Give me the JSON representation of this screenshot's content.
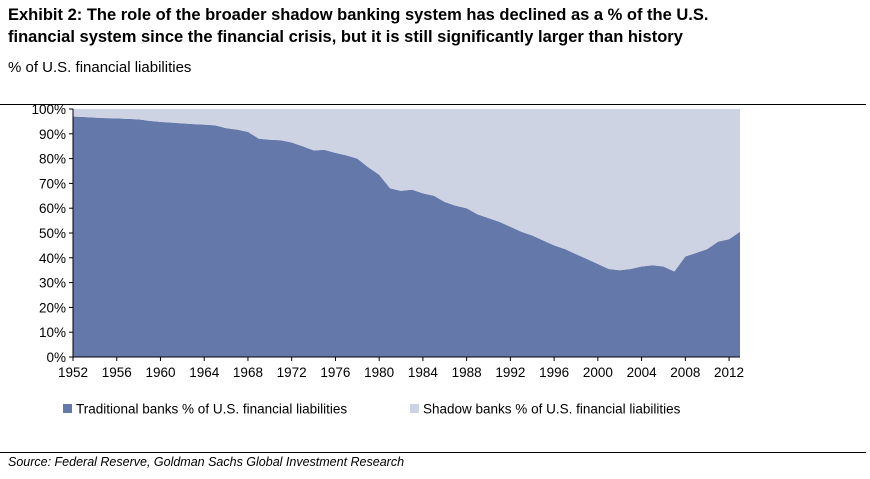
{
  "header": {
    "title_line1": "Exhibit 2:  The role of the broader shadow banking system has declined as a % of the U.S.",
    "title_line2": "financial system since the financial crisis, but it is still significantly larger than history",
    "subtitle": "% of U.S. financial liabilities"
  },
  "footer": {
    "source": "Source: Federal Reserve, Goldman Sachs Global Investment Research"
  },
  "colors": {
    "traditional": "#6478aa",
    "shadow": "#cdd3e3"
  },
  "chart_data": {
    "type": "area",
    "stacked": true,
    "x": [
      1952,
      1953,
      1954,
      1955,
      1956,
      1957,
      1958,
      1959,
      1960,
      1961,
      1962,
      1963,
      1964,
      1965,
      1966,
      1967,
      1968,
      1969,
      1970,
      1971,
      1972,
      1973,
      1974,
      1975,
      1976,
      1977,
      1978,
      1979,
      1980,
      1981,
      1982,
      1983,
      1984,
      1985,
      1986,
      1987,
      1988,
      1989,
      1990,
      1991,
      1992,
      1993,
      1994,
      1995,
      1996,
      1997,
      1998,
      1999,
      2000,
      2001,
      2002,
      2003,
      2004,
      2005,
      2006,
      2007,
      2008,
      2009,
      2010,
      2011,
      2012,
      2013
    ],
    "series": [
      {
        "name": "Traditional banks % of U.S. financial liabilities",
        "values": [
          97,
          96.8,
          96.5,
          96.3,
          96.2,
          96,
          95.8,
          95.2,
          94.8,
          94.5,
          94.2,
          93.9,
          93.7,
          93.4,
          92.3,
          91.7,
          90.8,
          88,
          87.6,
          87.4,
          86.5,
          85,
          83.3,
          83.5,
          82.3,
          81.3,
          80,
          76.5,
          73.5,
          68,
          67,
          67.5,
          66,
          65,
          62.5,
          61,
          60,
          57.5,
          56,
          54.5,
          52.5,
          50.5,
          49,
          47,
          45,
          43.5,
          41.5,
          39.5,
          37.5,
          35.5,
          35,
          35.5,
          36.5,
          37,
          36.5,
          34.5,
          40.5,
          42,
          43.5,
          46.5,
          47.5,
          50.5
        ]
      },
      {
        "name": "Shadow banks % of U.S. financial liabilities",
        "values": [
          3,
          3.2,
          3.5,
          3.7,
          3.8,
          4,
          4.2,
          4.8,
          5.2,
          5.5,
          5.8,
          6.1,
          6.3,
          6.6,
          7.7,
          8.3,
          9.2,
          12,
          12.4,
          12.6,
          13.5,
          15,
          16.7,
          16.5,
          17.7,
          18.7,
          20,
          23.5,
          26.5,
          32,
          33,
          32.5,
          34,
          35,
          37.5,
          39,
          40,
          42.5,
          44,
          45.5,
          47.5,
          49.5,
          51,
          53,
          55,
          56.5,
          58.5,
          60.5,
          62.5,
          64.5,
          65,
          64.5,
          63.5,
          63,
          63.5,
          65.5,
          59.5,
          58,
          56.5,
          53.5,
          52.5,
          49.5
        ]
      }
    ],
    "x_ticks": [
      "1952",
      "1956",
      "1960",
      "1964",
      "1968",
      "1972",
      "1976",
      "1980",
      "1984",
      "1988",
      "1992",
      "1996",
      "2000",
      "2004",
      "2008",
      "2012"
    ],
    "y_ticks": [
      "0%",
      "10%",
      "20%",
      "30%",
      "40%",
      "50%",
      "60%",
      "70%",
      "80%",
      "90%",
      "100%"
    ],
    "xlim": [
      1952,
      2013
    ],
    "ylim": [
      0,
      100
    ],
    "legend_position": "bottom"
  }
}
